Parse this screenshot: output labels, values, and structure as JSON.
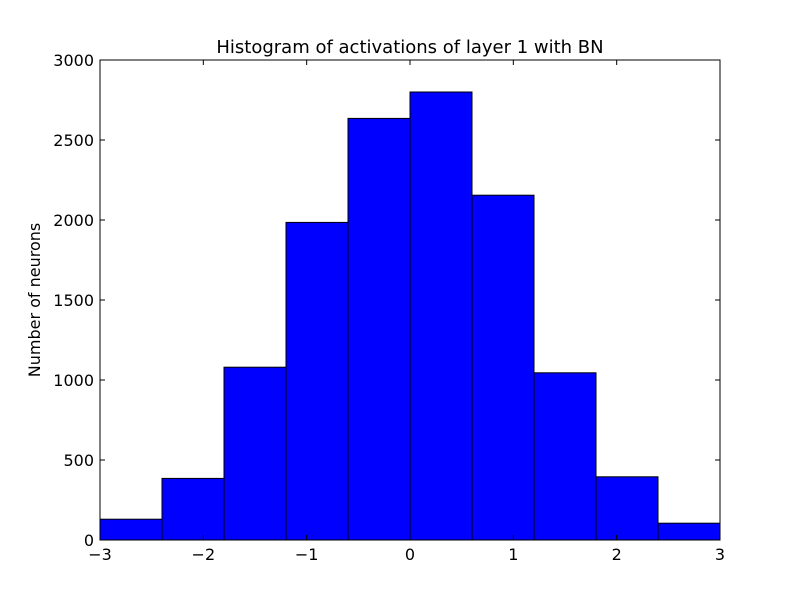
{
  "chart_data": {
    "type": "bar",
    "title": "Histogram of activations of layer 1  with BN",
    "ylabel": "Number of neurons",
    "xlabel": "",
    "xlim": [
      -3,
      3
    ],
    "ylim": [
      0,
      3000
    ],
    "bin_edges": [
      -3,
      -2.4,
      -1.8,
      -1.2,
      -0.6,
      0,
      0.6,
      1.2,
      1.8,
      2.4,
      3
    ],
    "values": [
      130,
      385,
      1080,
      1985,
      2635,
      2800,
      2155,
      1045,
      395,
      105
    ],
    "x_ticks": [
      -3,
      -2,
      -1,
      0,
      1,
      2,
      3
    ],
    "x_tick_labels": [
      "−3",
      "−2",
      "−1",
      "0",
      "1",
      "2",
      "3"
    ],
    "y_ticks": [
      0,
      500,
      1000,
      1500,
      2000,
      2500,
      3000
    ],
    "y_tick_labels": [
      "0",
      "500",
      "1000",
      "1500",
      "2000",
      "2500",
      "3000"
    ],
    "bar_color": "#0000ff",
    "edge_color": "#000000",
    "grid": false
  }
}
